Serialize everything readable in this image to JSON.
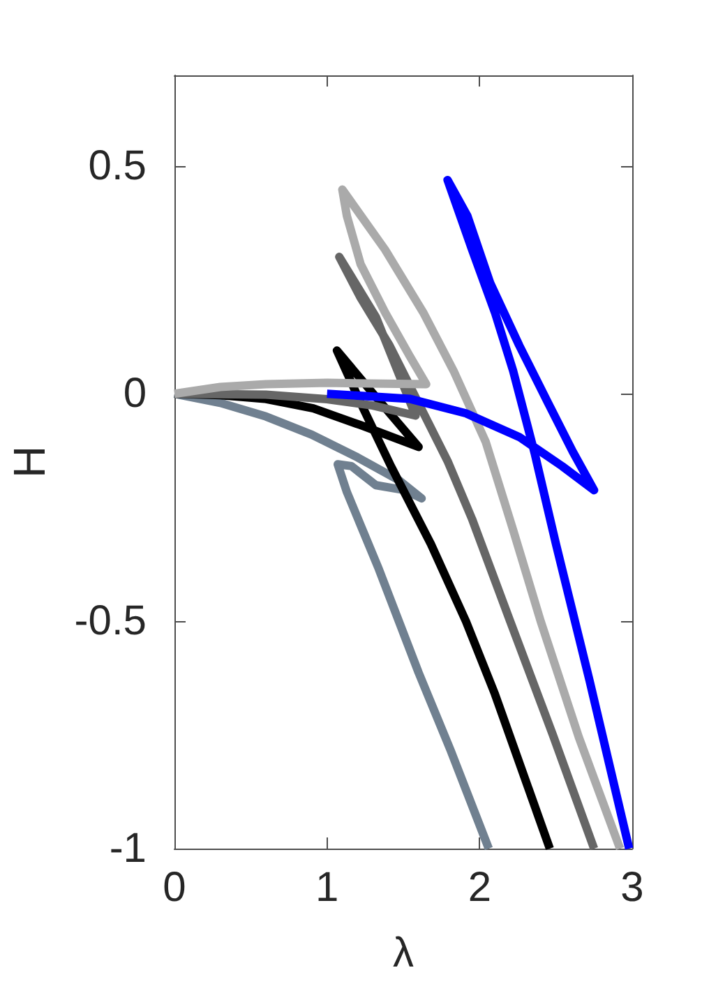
{
  "chart_data": {
    "type": "line",
    "xlabel": "λ",
    "ylabel": "H",
    "xlim": [
      0,
      3
    ],
    "xticks": [
      0,
      1,
      2,
      3
    ],
    "ylim": [
      -1,
      0.7
    ],
    "yticks": [
      -1,
      -0.5,
      0,
      0.5
    ],
    "grid": false,
    "line_style": "solid",
    "series": [
      {
        "color": "#708090",
        "x": [
          0,
          0.3,
          0.6,
          0.9,
          1.2,
          1.47,
          1.62,
          1.51,
          1.32,
          1.16,
          1.07,
          1.13,
          1.34,
          1.6,
          1.81,
          2.06
        ],
        "values": [
          0,
          -0.02,
          -0.05,
          -0.09,
          -0.14,
          -0.19,
          -0.23,
          -0.212,
          -0.201,
          -0.159,
          -0.155,
          -0.216,
          -0.386,
          -0.613,
          -0.784,
          -1
        ]
      },
      {
        "color": "#000000",
        "x": [
          0,
          0.3,
          0.59,
          0.91,
          1.22,
          1.6,
          1.33,
          1.065,
          1.22,
          1.42,
          1.68,
          1.91,
          2.1,
          2.28,
          2.46
        ],
        "values": [
          0,
          -0.003,
          -0.011,
          -0.032,
          -0.069,
          -0.117,
          -0.011,
          0.095,
          -0.02,
          -0.16,
          -0.33,
          -0.5,
          -0.66,
          -0.83,
          -1
        ]
      },
      {
        "color": "#666666",
        "x": [
          0,
          0.6,
          1.0,
          1.3,
          1.58,
          1.32,
          1.08,
          1.22,
          1.41,
          1.6,
          1.79,
          1.95,
          2.2,
          2.48,
          2.75
        ],
        "values": [
          0,
          -0.002,
          -0.012,
          -0.026,
          -0.048,
          0.169,
          0.301,
          0.211,
          0.106,
          -0.021,
          -0.148,
          -0.275,
          -0.5,
          -0.75,
          -1
        ]
      },
      {
        "color": "#aaaaaa",
        "x": [
          0,
          0.3,
          0.6,
          1.0,
          1.65,
          1.54,
          1.38,
          1.22,
          1.13,
          1.1,
          1.38,
          1.63,
          1.83,
          2.04,
          2.22,
          2.4,
          2.65,
          2.92
        ],
        "values": [
          0,
          0.015,
          0.021,
          0.024,
          0.021,
          0.084,
          0.179,
          0.285,
          0.391,
          0.449,
          0.317,
          0.179,
          0.05,
          -0.106,
          -0.3,
          -0.5,
          -0.755,
          -1
        ]
      },
      {
        "color": "#0000ff",
        "x": [
          1.0,
          1.54,
          1.91,
          2.26,
          2.54,
          2.75,
          2.61,
          2.45,
          2.26,
          2.07,
          1.92,
          1.79,
          1.95,
          2.1,
          2.22,
          2.36,
          2.5,
          2.72,
          2.98
        ],
        "values": [
          0,
          -0.011,
          -0.043,
          -0.095,
          -0.159,
          -0.212,
          -0.127,
          -0.021,
          0.106,
          0.243,
          0.391,
          0.47,
          0.317,
          0.179,
          0.05,
          -0.13,
          -0.33,
          -0.63,
          -1
        ]
      }
    ]
  }
}
